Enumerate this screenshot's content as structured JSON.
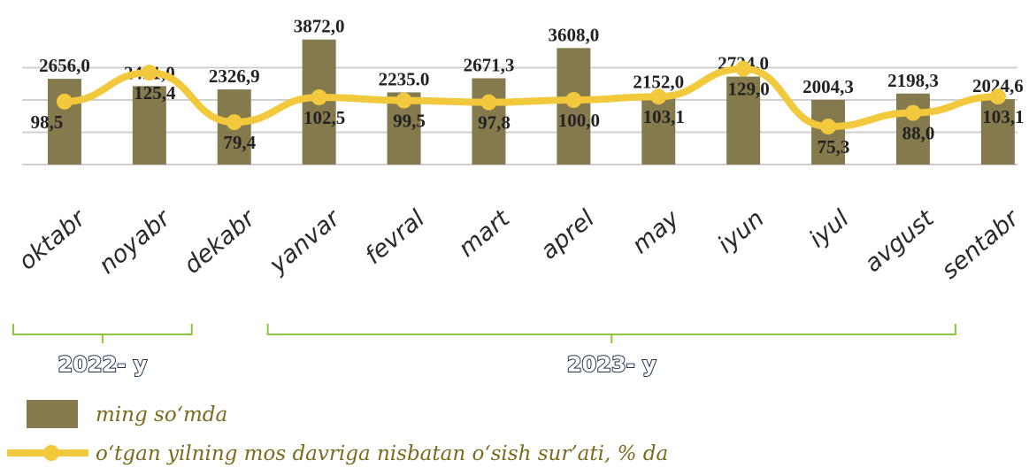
{
  "chart_data": {
    "type": "bar_line",
    "categories": [
      "oktabr",
      "noyabr",
      "dekabr",
      "yanvar",
      "fevral",
      "mart",
      "aprel",
      "may",
      "iyun",
      "iyul",
      "avgust",
      "sentabr"
    ],
    "series": [
      {
        "name": "ming so‘mda",
        "color": "#857a4e",
        "type": "bar",
        "values": [
          2656.0,
          2431.0,
          2326.9,
          3872.0,
          2235.0,
          2671.3,
          3608.0,
          2152.0,
          2724.0,
          2004.3,
          2198.3,
          2024.6
        ],
        "value_labels": [
          "2656,0",
          "2431,0",
          "2326,9",
          "3872,0",
          "2235.0",
          "2671,3",
          "3608,0",
          "2152,0",
          "2724,0",
          "2004,3",
          "2198,3",
          "2024,6"
        ]
      },
      {
        "name": "o‘tgan yilning mos davriga nisbatan o‘sish sur’ati, % da",
        "color": "#f2c83c",
        "type": "line",
        "axis": "y2",
        "values": [
          98.5,
          125.4,
          79.4,
          102.5,
          99.5,
          97.8,
          100.0,
          103.1,
          129.0,
          75.3,
          88.0,
          103.1
        ],
        "value_labels": [
          "98,5",
          "125,4",
          "79,4",
          "102,5",
          "99,5",
          "97,8",
          "100,0",
          "103,1",
          "129,0",
          "75,3",
          "88,0",
          "103,1"
        ]
      }
    ],
    "groups": [
      {
        "label": "2022- y",
        "from": 0,
        "to": 2
      },
      {
        "label": "2023- y",
        "from": 3,
        "to": 11
      }
    ],
    "ylim": [
      0,
      4000
    ],
    "yticks": [
      0,
      1000,
      2000,
      3000
    ],
    "y2lim": [
      40,
      160
    ],
    "grid": true
  }
}
